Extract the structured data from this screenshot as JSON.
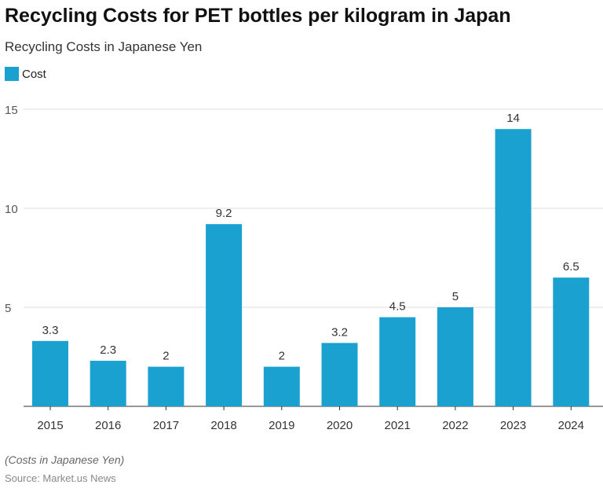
{
  "title": "Recycling Costs for PET bottles per kilogram in Japan",
  "subtitle": "Recycling Costs in Japanese Yen",
  "note": "(Costs in Japanese Yen)",
  "source": "Source: Market.us News",
  "chart_data": {
    "type": "bar",
    "categories": [
      "2015",
      "2016",
      "2017",
      "2018",
      "2019",
      "2020",
      "2021",
      "2022",
      "2023",
      "2024"
    ],
    "series": [
      {
        "name": "Cost",
        "values": [
          3.3,
          2.3,
          2,
          9.2,
          2,
          3.2,
          4.5,
          5,
          14,
          6.5
        ],
        "color": "#1ba1cf"
      }
    ],
    "data_labels": [
      "3.3",
      "2.3",
      "2",
      "9.2",
      "2",
      "3.2",
      "4.5",
      "5",
      "14",
      "6.5"
    ],
    "ylim": [
      0,
      15
    ],
    "yticks": [
      "5",
      "10",
      "15"
    ],
    "ytick_values": [
      5,
      10,
      15
    ],
    "grid": true,
    "legend": "top-left"
  }
}
